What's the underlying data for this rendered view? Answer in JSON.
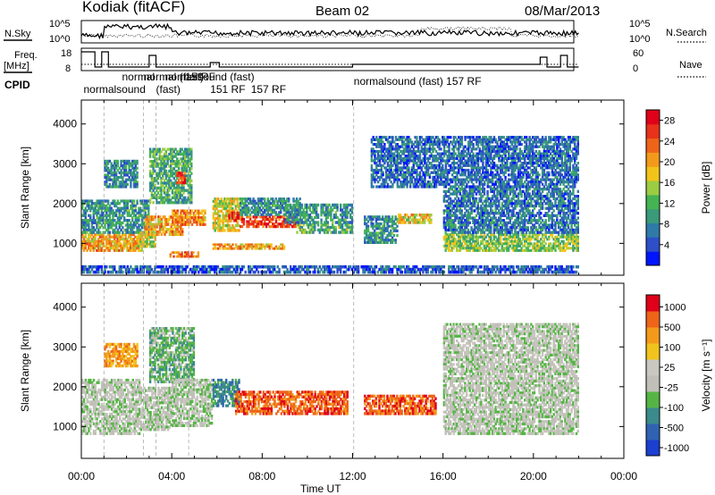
{
  "header": {
    "station": "Kodiak (fitACF)",
    "beam": "Beam 02",
    "date": "08/Mar/2013"
  },
  "time_panels": {
    "nsky_label": "N.Sky",
    "nsearch_label": "N.Search",
    "freq_label_1": "Freq.",
    "freq_label_2": "[MHz]",
    "nave_label": "Nave",
    "cpid_label": "CPID",
    "nsky_ticks": [
      "10^5",
      "10^0"
    ],
    "nsearch_ticks": [
      "10^5",
      "10^0"
    ],
    "freq_ticks": [
      "18",
      "8"
    ],
    "nave_ticks": [
      "60",
      "0"
    ]
  },
  "cpid_labels": [
    {
      "text": "normal",
      "t": 1.8
    },
    {
      "text": "(fast)",
      "t": 3.3
    },
    {
      "text": "normalsound",
      "t": 0.1
    },
    {
      "text": "normal (fast)",
      "t": 2.75
    },
    {
      "text": "normalsound (fast)",
      "t": 3.7
    },
    {
      "text": "151",
      "t": 4.6
    },
    {
      "text": "RF",
      "t": 5.3
    },
    {
      "text": "151 RF",
      "t": 5.7
    },
    {
      "text": "157 RF",
      "t": 7.5
    },
    {
      "text": "normalsound (fast) 157 RF",
      "t": 12.05
    }
  ],
  "chart_data": [
    {
      "type": "heatmap",
      "name": "power",
      "ylabel": "Slant Range [km]",
      "ylim": [
        200,
        4600
      ],
      "xlim": [
        0,
        24
      ],
      "x_ticks": [
        "00:00",
        "04:00",
        "08:00",
        "12:00",
        "16:00",
        "20:00",
        "00:00"
      ],
      "y_ticks": [
        1000,
        2000,
        3000,
        4000
      ],
      "colorbar_label": "Power [dB]",
      "colorbar_ticks": [
        "4",
        "8",
        "12",
        "16",
        "20",
        "24",
        "28"
      ],
      "colorbar_colors": [
        "#0015ff",
        "#2d4fc8",
        "#2f7aa8",
        "#3a9a7a",
        "#45b354",
        "#9bcc43",
        "#f2c41a",
        "#f39a1b",
        "#ee6419",
        "#e8321b",
        "#e0001a"
      ],
      "colorbar_range": [
        0,
        30
      ],
      "regions": [
        {
          "t0": 0.0,
          "t1": 2.7,
          "r0": 800,
          "r1": 1250,
          "v": 20
        },
        {
          "t0": 0.0,
          "t1": 3.0,
          "r0": 1250,
          "r1": 2100,
          "v": 9
        },
        {
          "t0": 1.0,
          "t1": 2.5,
          "r0": 2400,
          "r1": 3100,
          "v": 8
        },
        {
          "t0": 2.5,
          "t1": 3.3,
          "r0": 900,
          "r1": 1300,
          "v": 16
        },
        {
          "t0": 2.8,
          "t1": 4.5,
          "r0": 1200,
          "r1": 1700,
          "v": 20
        },
        {
          "t0": 4.0,
          "t1": 5.5,
          "r0": 1450,
          "r1": 1850,
          "v": 21
        },
        {
          "t0": 3.0,
          "t1": 4.9,
          "r0": 2000,
          "r1": 3400,
          "v": 11
        },
        {
          "t0": 4.2,
          "t1": 4.6,
          "r0": 2500,
          "r1": 2800,
          "v": 26
        },
        {
          "t0": 3.9,
          "t1": 5.2,
          "r0": 650,
          "r1": 800,
          "v": 23
        },
        {
          "t0": 5.8,
          "t1": 9.0,
          "r0": 850,
          "r1": 1000,
          "v": 20
        },
        {
          "t0": 5.8,
          "t1": 7.0,
          "r0": 1300,
          "r1": 2150,
          "v": 17
        },
        {
          "t0": 6.5,
          "t1": 7.0,
          "r0": 1550,
          "r1": 1800,
          "v": 27
        },
        {
          "t0": 7.0,
          "t1": 9.5,
          "r0": 1400,
          "r1": 1700,
          "v": 25
        },
        {
          "t0": 7.0,
          "t1": 9.7,
          "r0": 1700,
          "r1": 2150,
          "v": 9
        },
        {
          "t0": 9.5,
          "t1": 12.0,
          "r0": 1250,
          "r1": 1500,
          "v": 12
        },
        {
          "t0": 9.0,
          "t1": 12.0,
          "r0": 1500,
          "r1": 2000,
          "v": 9
        },
        {
          "t0": 12.5,
          "t1": 14.0,
          "r0": 1000,
          "r1": 1700,
          "v": 9
        },
        {
          "t0": 14.0,
          "t1": 15.5,
          "r0": 1500,
          "r1": 1750,
          "v": 18
        },
        {
          "t0": 16.0,
          "t1": 22.0,
          "r0": 800,
          "r1": 1250,
          "v": 14
        },
        {
          "t0": 16.0,
          "t1": 22.0,
          "r0": 1250,
          "r1": 2400,
          "v": 7
        },
        {
          "t0": 12.8,
          "t1": 22.0,
          "r0": 2400,
          "r1": 3700,
          "v": 6
        },
        {
          "t0": 0.0,
          "t1": 22.0,
          "r0": 250,
          "r1": 450,
          "v": 5
        }
      ]
    },
    {
      "type": "heatmap",
      "name": "velocity",
      "ylabel": "Slant Range [km]",
      "xlabel": "Time UT",
      "ylim": [
        200,
        4600
      ],
      "xlim": [
        0,
        24
      ],
      "x_ticks": [
        "00:00",
        "04:00",
        "08:00",
        "12:00",
        "16:00",
        "20:00",
        "00:00"
      ],
      "y_ticks": [
        1000,
        2000,
        3000,
        4000
      ],
      "colorbar_label": "Velocity [m s⁻¹]",
      "colorbar_ticks": [
        "1000",
        "500",
        "100",
        "25",
        "-25",
        "-100",
        "-500",
        "-1000"
      ],
      "colorbar_colors": [
        "#1b3fd0",
        "#2f63b2",
        "#3b8a8c",
        "#55b544",
        "#c0c0b8",
        "#c8c8c0",
        "#f0c41c",
        "#f39a1b",
        "#ee6419",
        "#e0001a"
      ],
      "regions": [
        {
          "t0": 0.0,
          "t1": 2.6,
          "r0": 800,
          "r1": 2200,
          "c": 4
        },
        {
          "t0": 2.6,
          "t1": 4.0,
          "r0": 900,
          "r1": 2000,
          "c": 4
        },
        {
          "t0": 1.0,
          "t1": 2.5,
          "r0": 2500,
          "r1": 3100,
          "c": 7
        },
        {
          "t0": 3.0,
          "t1": 5.0,
          "r0": 2100,
          "r1": 3500,
          "c": 3
        },
        {
          "t0": 4.0,
          "t1": 5.8,
          "r0": 1000,
          "r1": 2200,
          "c": 4
        },
        {
          "t0": 5.8,
          "t1": 7.0,
          "r0": 1500,
          "r1": 2200,
          "c": 2
        },
        {
          "t0": 6.8,
          "t1": 11.8,
          "r0": 1300,
          "r1": 1900,
          "c": 8
        },
        {
          "t0": 12.5,
          "t1": 15.7,
          "r0": 1300,
          "r1": 1800,
          "c": 8
        },
        {
          "t0": 16.0,
          "t1": 22.0,
          "r0": 800,
          "r1": 2300,
          "c": 4
        },
        {
          "t0": 16.0,
          "t1": 22.0,
          "r0": 2300,
          "r1": 3600,
          "c": 4
        }
      ]
    }
  ]
}
